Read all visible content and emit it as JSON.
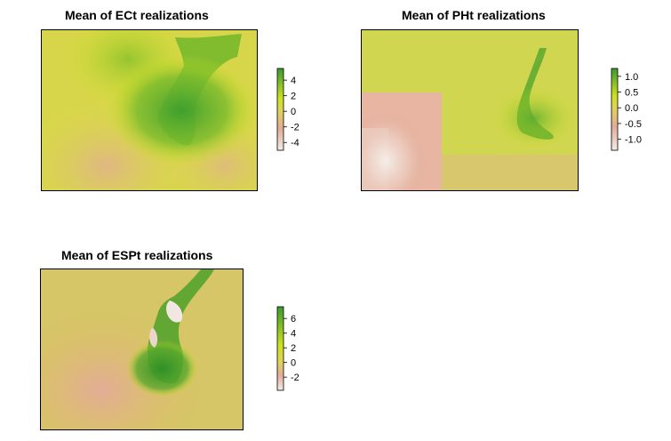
{
  "chart_data": [
    {
      "type": "heatmap",
      "title": "Mean of ECt realizations",
      "legend": {
        "ticks": [
          4,
          2,
          0,
          -2,
          -4
        ],
        "range": [
          -5,
          5.5
        ],
        "placement": "right"
      },
      "colors": {
        "low": "#f2ece6",
        "lowmid": "#e3ac98",
        "mid": "#dfd35a",
        "highmid": "#cde21f",
        "high": "#3a9a2e"
      }
    },
    {
      "type": "heatmap",
      "title": "Mean of PHt realizations",
      "legend": {
        "ticks": [
          1.0,
          0.5,
          0.0,
          -0.5,
          -1.0
        ],
        "tick_labels": [
          "1.0",
          "0.5",
          "0.0",
          "-0.5",
          "-1.0"
        ],
        "range": [
          -1.35,
          1.25
        ],
        "placement": "right"
      },
      "colors": {
        "low": "#f2ece6",
        "lowmid": "#e3ac98",
        "mid": "#dfd35a",
        "highmid": "#cde21f",
        "high": "#3a9a2e"
      }
    },
    {
      "type": "heatmap",
      "title": "Mean of ESPt realizations",
      "legend": {
        "ticks": [
          6,
          4,
          2,
          0,
          -2
        ],
        "range": [
          -3.8,
          7.6
        ],
        "placement": "right"
      },
      "colors": {
        "low": "#f2ece6",
        "lowmid": "#e3ac98",
        "mid": "#dfd35a",
        "highmid": "#cde21f",
        "high": "#3a9a2e"
      }
    }
  ]
}
